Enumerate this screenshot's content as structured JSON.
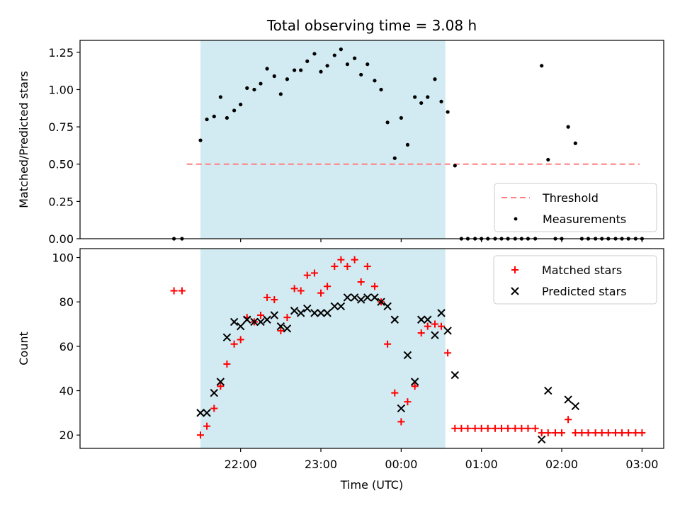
{
  "chart_data": {
    "type": "scatter",
    "title": "Total observing time = 3.08 h",
    "xlabel": "Time (UTC)",
    "x_unit": "hours after 21:00 UTC",
    "x_ticks": [
      {
        "value": 1,
        "label": "22:00"
      },
      {
        "value": 2,
        "label": "23:00"
      },
      {
        "value": 3,
        "label": "00:00"
      },
      {
        "value": 4,
        "label": "01:00"
      },
      {
        "value": 5,
        "label": "02:00"
      },
      {
        "value": 6,
        "label": "03:00"
      }
    ],
    "xlim": [
      -1.0,
      6.27
    ],
    "observing_window": {
      "start": 0.5,
      "end": 3.55,
      "color": "#add8e6"
    },
    "panels": [
      {
        "id": "ratio",
        "ylabel": "Matched/Predicted stars",
        "ylim": [
          0,
          1.33
        ],
        "y_ticks": [
          {
            "value": 0,
            "label": "0.00"
          },
          {
            "value": 0.25,
            "label": "0.25"
          },
          {
            "value": 0.5,
            "label": "0.50"
          },
          {
            "value": 0.75,
            "label": "0.75"
          },
          {
            "value": 1.0,
            "label": "1.00"
          },
          {
            "value": 1.25,
            "label": "1.25"
          }
        ],
        "legend": {
          "placement": "lower-right",
          "entries": [
            {
              "label": "Threshold",
              "marker": "dashed-line",
              "color": "#ff8080"
            },
            {
              "label": "Measurements",
              "marker": "dot",
              "color": "#000000"
            }
          ]
        },
        "threshold": {
          "name": "Threshold",
          "value": 0.5,
          "x_range": [
            0.33,
            5.97
          ],
          "color": "#ff8080"
        },
        "series": [
          {
            "name": "Measurements",
            "marker": "dot",
            "color": "#000000",
            "points": [
              [
                0.17,
                0.0
              ],
              [
                0.27,
                0.0
              ],
              [
                0.5,
                0.66
              ],
              [
                0.58,
                0.8
              ],
              [
                0.67,
                0.82
              ],
              [
                0.75,
                0.95
              ],
              [
                0.83,
                0.81
              ],
              [
                0.92,
                0.86
              ],
              [
                1.0,
                0.9
              ],
              [
                1.08,
                1.01
              ],
              [
                1.17,
                1.0
              ],
              [
                1.25,
                1.04
              ],
              [
                1.33,
                1.14
              ],
              [
                1.42,
                1.09
              ],
              [
                1.5,
                0.97
              ],
              [
                1.58,
                1.07
              ],
              [
                1.67,
                1.13
              ],
              [
                1.75,
                1.13
              ],
              [
                1.83,
                1.19
              ],
              [
                1.92,
                1.24
              ],
              [
                2.0,
                1.12
              ],
              [
                2.08,
                1.16
              ],
              [
                2.17,
                1.23
              ],
              [
                2.25,
                1.27
              ],
              [
                2.33,
                1.17
              ],
              [
                2.42,
                1.21
              ],
              [
                2.5,
                1.1
              ],
              [
                2.58,
                1.17
              ],
              [
                2.67,
                1.06
              ],
              [
                2.75,
                1.0
              ],
              [
                2.83,
                0.78
              ],
              [
                2.92,
                0.54
              ],
              [
                3.0,
                0.81
              ],
              [
                3.08,
                0.63
              ],
              [
                3.17,
                0.95
              ],
              [
                3.25,
                0.91
              ],
              [
                3.33,
                0.95
              ],
              [
                3.42,
                1.07
              ],
              [
                3.5,
                0.92
              ],
              [
                3.58,
                0.85
              ],
              [
                3.67,
                0.49
              ],
              [
                3.75,
                0.0
              ],
              [
                3.83,
                0.0
              ],
              [
                3.92,
                0.0
              ],
              [
                4.0,
                0.0
              ],
              [
                4.08,
                0.0
              ],
              [
                4.17,
                0.0
              ],
              [
                4.25,
                0.0
              ],
              [
                4.33,
                0.0
              ],
              [
                4.42,
                0.0
              ],
              [
                4.5,
                0.0
              ],
              [
                4.58,
                0.0
              ],
              [
                4.67,
                0.0
              ],
              [
                4.75,
                1.16
              ],
              [
                4.83,
                0.53
              ],
              [
                4.92,
                0.0
              ],
              [
                5.0,
                0.0
              ],
              [
                5.08,
                0.75
              ],
              [
                5.17,
                0.64
              ],
              [
                5.25,
                0.0
              ],
              [
                5.33,
                0.0
              ],
              [
                5.42,
                0.0
              ],
              [
                5.5,
                0.0
              ],
              [
                5.58,
                0.0
              ],
              [
                5.67,
                0.0
              ],
              [
                5.75,
                0.0
              ],
              [
                5.83,
                0.0
              ],
              [
                5.92,
                0.0
              ],
              [
                6.0,
                0.0
              ]
            ]
          }
        ]
      },
      {
        "id": "count",
        "ylabel": "Count",
        "ylim": [
          14,
          104
        ],
        "y_ticks": [
          {
            "value": 20,
            "label": "20"
          },
          {
            "value": 40,
            "label": "40"
          },
          {
            "value": 60,
            "label": "60"
          },
          {
            "value": 80,
            "label": "80"
          },
          {
            "value": 100,
            "label": "100"
          }
        ],
        "legend": {
          "placement": "upper-right",
          "entries": [
            {
              "label": "Matched stars",
              "marker": "plus",
              "color": "#ff0000"
            },
            {
              "label": "Predicted stars",
              "marker": "x",
              "color": "#000000"
            }
          ]
        },
        "series": [
          {
            "name": "Matched stars",
            "marker": "plus",
            "color": "#ff0000",
            "points": [
              [
                0.17,
                85
              ],
              [
                0.27,
                85
              ],
              [
                0.5,
                20
              ],
              [
                0.58,
                24
              ],
              [
                0.67,
                32
              ],
              [
                0.75,
                42
              ],
              [
                0.83,
                52
              ],
              [
                0.92,
                61
              ],
              [
                1.0,
                63
              ],
              [
                1.08,
                73
              ],
              [
                1.17,
                71
              ],
              [
                1.25,
                74
              ],
              [
                1.33,
                82
              ],
              [
                1.42,
                81
              ],
              [
                1.5,
                67
              ],
              [
                1.58,
                73
              ],
              [
                1.67,
                86
              ],
              [
                1.75,
                85
              ],
              [
                1.83,
                92
              ],
              [
                1.92,
                93
              ],
              [
                2.0,
                84
              ],
              [
                2.08,
                87
              ],
              [
                2.17,
                96
              ],
              [
                2.25,
                99
              ],
              [
                2.33,
                96
              ],
              [
                2.42,
                99
              ],
              [
                2.5,
                89
              ],
              [
                2.58,
                96
              ],
              [
                2.67,
                87
              ],
              [
                2.75,
                80
              ],
              [
                2.83,
                61
              ],
              [
                2.92,
                39
              ],
              [
                3.0,
                26
              ],
              [
                3.08,
                35
              ],
              [
                3.17,
                42
              ],
              [
                3.25,
                66
              ],
              [
                3.33,
                69
              ],
              [
                3.42,
                70
              ],
              [
                3.5,
                69
              ],
              [
                3.58,
                57
              ],
              [
                3.67,
                23
              ],
              [
                3.75,
                23
              ],
              [
                3.83,
                23
              ],
              [
                3.92,
                23
              ],
              [
                4.0,
                23
              ],
              [
                4.08,
                23
              ],
              [
                4.17,
                23
              ],
              [
                4.25,
                23
              ],
              [
                4.33,
                23
              ],
              [
                4.42,
                23
              ],
              [
                4.5,
                23
              ],
              [
                4.58,
                23
              ],
              [
                4.67,
                23
              ],
              [
                4.75,
                21
              ],
              [
                4.83,
                21
              ],
              [
                4.92,
                21
              ],
              [
                5.0,
                21
              ],
              [
                5.08,
                27
              ],
              [
                5.17,
                21
              ],
              [
                5.25,
                21
              ],
              [
                5.33,
                21
              ],
              [
                5.42,
                21
              ],
              [
                5.5,
                21
              ],
              [
                5.58,
                21
              ],
              [
                5.67,
                21
              ],
              [
                5.75,
                21
              ],
              [
                5.83,
                21
              ],
              [
                5.92,
                21
              ],
              [
                6.0,
                21
              ]
            ]
          },
          {
            "name": "Predicted stars",
            "marker": "x",
            "color": "#000000",
            "points": [
              [
                0.5,
                30
              ],
              [
                0.58,
                30
              ],
              [
                0.67,
                39
              ],
              [
                0.75,
                44
              ],
              [
                0.83,
                64
              ],
              [
                0.92,
                71
              ],
              [
                1.0,
                69
              ],
              [
                1.08,
                72
              ],
              [
                1.17,
                71
              ],
              [
                1.25,
                71
              ],
              [
                1.33,
                72
              ],
              [
                1.42,
                74
              ],
              [
                1.5,
                69
              ],
              [
                1.58,
                68
              ],
              [
                1.67,
                76
              ],
              [
                1.75,
                75
              ],
              [
                1.83,
                77
              ],
              [
                1.92,
                75
              ],
              [
                2.0,
                75
              ],
              [
                2.08,
                75
              ],
              [
                2.17,
                78
              ],
              [
                2.25,
                78
              ],
              [
                2.33,
                82
              ],
              [
                2.42,
                82
              ],
              [
                2.5,
                81
              ],
              [
                2.58,
                82
              ],
              [
                2.67,
                82
              ],
              [
                2.75,
                80
              ],
              [
                2.83,
                78
              ],
              [
                2.92,
                72
              ],
              [
                3.0,
                32
              ],
              [
                3.08,
                56
              ],
              [
                3.17,
                44
              ],
              [
                3.25,
                72
              ],
              [
                3.33,
                72
              ],
              [
                3.42,
                65
              ],
              [
                3.5,
                75
              ],
              [
                3.58,
                67
              ],
              [
                3.67,
                47
              ],
              [
                4.75,
                18
              ],
              [
                4.83,
                40
              ],
              [
                5.08,
                36
              ],
              [
                5.17,
                33
              ]
            ]
          }
        ]
      }
    ]
  }
}
